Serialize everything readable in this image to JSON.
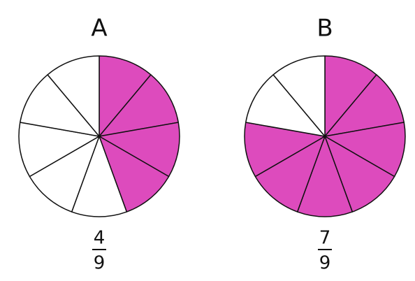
{
  "figures": [
    {
      "label": "A",
      "fraction": {
        "numerator": 4,
        "denominator": 9
      }
    },
    {
      "label": "B",
      "fraction": {
        "numerator": 7,
        "denominator": 9
      }
    }
  ],
  "shaded_color": "#dd4bbd"
}
